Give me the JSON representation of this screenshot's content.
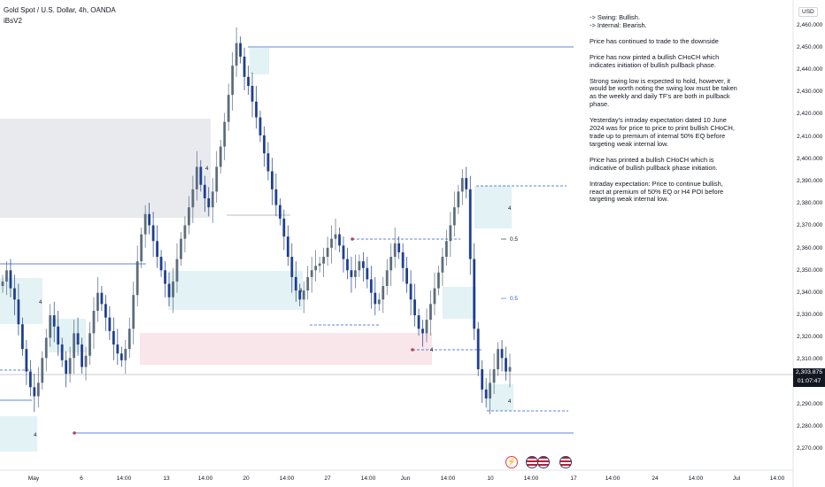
{
  "header": {
    "symbol_line": "Gold Spot / U.S. Dollar, 4h, OANDA",
    "indicator": "iBsV2"
  },
  "currency_label": "USD",
  "last_price": {
    "value": "2,303.875",
    "countdown": "01:07:47"
  },
  "price_axis": {
    "ticks": [
      "2,460.000",
      "2,450.000",
      "2,440.000",
      "2,430.000",
      "2,420.000",
      "2,410.000",
      "2,400.000",
      "2,390.000",
      "2,380.000",
      "2,370.000",
      "2,360.000",
      "2,350.000",
      "2,340.000",
      "2,330.000",
      "2,320.000",
      "2,310.000",
      "2,290.000",
      "2,280.000",
      "2,270.000"
    ]
  },
  "time_axis": {
    "ticks": [
      "May",
      "6",
      "14:00",
      "13",
      "14:00",
      "20",
      "14:00",
      "27",
      "14:00",
      "Jun",
      "14:00",
      "10",
      "14:00",
      "17",
      "14:00",
      "24",
      "14:00",
      "Jul",
      "14:00"
    ]
  },
  "level_labels": {
    "half_a": "0.5",
    "half_b": "0.5",
    "marker": "4"
  },
  "notes": [
    "-> Swing:  Bullish.",
    "-> Internal:  Bearish.",
    "Price has continued to trade to the downside",
    "Price has now pinted a bullish CHoCH which indicates initiation of bullish pullback phase.",
    "Strong swing low is expected to hold, however, it would be worth noting the swing low must be taken as the weekly and daily TF's are both in pullback phase.",
    "Yesterday's intraday expectation dated 10 June 2024 was for price to price to print bullish CHoCH, trade up to premium of internal 50% EQ before targeting weak internal low.",
    "Price has printed a bullish CHoCH which is indicative of bullish pullback phase initiation.",
    "Intraday expectation: Price to continue bullish, react at premium of 50% EQ or H4 POI before targeting weak internal low."
  ],
  "colors": {
    "bull": "#5d6d7e",
    "bear": "#1f3f8f",
    "zone_blue": "#e3f2f4",
    "zone_grey": "#e8eaee",
    "zone_pink": "#f8e6ea",
    "line_blue": "#2a5bd7"
  },
  "chart_data": {
    "type": "candlestick",
    "timeframe": "4h",
    "ylim": [
      2265,
      2465
    ],
    "closes": [
      2341,
      2346,
      2338,
      2333,
      2322,
      2311,
      2301,
      2294,
      2290,
      2296,
      2307,
      2316,
      2326,
      2321,
      2313,
      2306,
      2300,
      2307,
      2318,
      2313,
      2303,
      2308,
      2318,
      2328,
      2336,
      2331,
      2325,
      2319,
      2313,
      2309,
      2306,
      2311,
      2320,
      2335,
      2350,
      2362,
      2371,
      2366,
      2359,
      2352,
      2346,
      2340,
      2334,
      2341,
      2351,
      2360,
      2366,
      2374,
      2382,
      2392,
      2384,
      2378,
      2374,
      2381,
      2392,
      2401,
      2412,
      2424,
      2437,
      2447,
      2441,
      2432,
      2428,
      2421,
      2414,
      2406,
      2398,
      2390,
      2382,
      2375,
      2369,
      2361,
      2352,
      2343,
      2337,
      2333,
      2337,
      2343,
      2346,
      2348,
      2349,
      2352,
      2356,
      2360,
      2362,
      2357,
      2351,
      2346,
      2343,
      2346,
      2350,
      2347,
      2342,
      2336,
      2331,
      2333,
      2339,
      2346,
      2352,
      2358,
      2354,
      2347,
      2340,
      2333,
      2326,
      2320,
      2318,
      2324,
      2331,
      2338,
      2345,
      2352,
      2359,
      2366,
      2374,
      2381,
      2387,
      2382,
      2351,
      2320,
      2302,
      2293,
      2289,
      2296,
      2302,
      2311,
      2307,
      2301,
      2303
    ]
  }
}
